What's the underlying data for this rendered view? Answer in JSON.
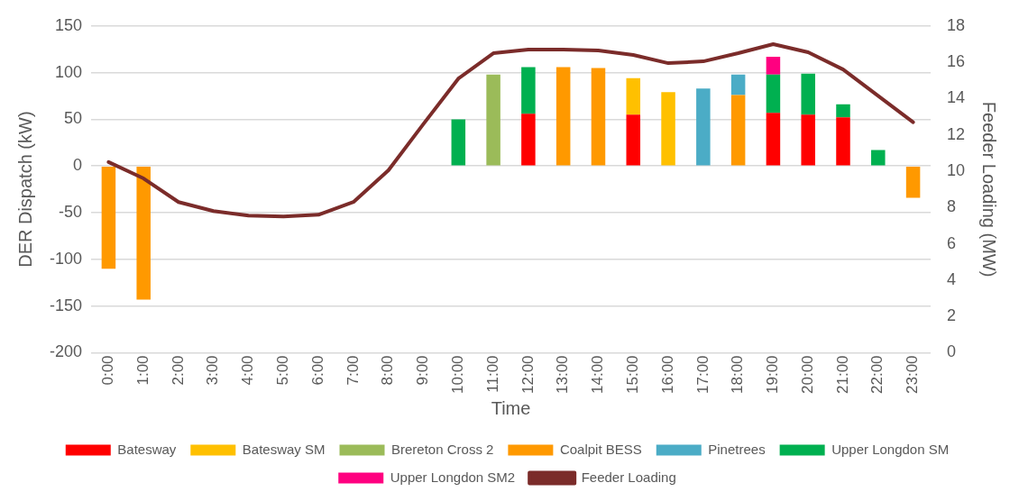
{
  "chart_data": {
    "type": "bar",
    "stacked": true,
    "xlabel": "Time",
    "ylabel": "DER Dispatch (kW)",
    "y2label": "Feeder Loading (MW)",
    "categories": [
      "0:00",
      "1:00",
      "2:00",
      "3:00",
      "4:00",
      "5:00",
      "6:00",
      "7:00",
      "8:00",
      "9:00",
      "10:00",
      "11:00",
      "12:00",
      "13:00",
      "14:00",
      "15:00",
      "16:00",
      "17:00",
      "18:00",
      "19:00",
      "20:00",
      "21:00",
      "22:00",
      "23:00"
    ],
    "ylim": [
      -200,
      150
    ],
    "yticks": [
      -200,
      -150,
      -100,
      -50,
      0,
      50,
      100,
      150
    ],
    "y2lim": [
      0,
      18
    ],
    "y2ticks": [
      0,
      2,
      4,
      6,
      8,
      10,
      12,
      14,
      16,
      18
    ],
    "grid": "y",
    "legend": "bottom",
    "series": [
      {
        "name": "Batesway",
        "color": "#ff0000",
        "values": [
          null,
          null,
          null,
          null,
          null,
          null,
          null,
          null,
          null,
          null,
          null,
          null,
          56,
          null,
          null,
          55,
          null,
          null,
          null,
          57,
          55,
          52,
          null,
          null
        ]
      },
      {
        "name": "Batesway SM",
        "color": "#ffc000",
        "values": [
          null,
          null,
          null,
          null,
          null,
          null,
          null,
          null,
          null,
          null,
          null,
          null,
          null,
          null,
          null,
          39,
          79,
          null,
          null,
          null,
          null,
          null,
          null,
          null
        ]
      },
      {
        "name": "Brereton Cross 2",
        "color": "#9bbb59",
        "values": [
          null,
          null,
          null,
          null,
          null,
          null,
          null,
          null,
          null,
          null,
          null,
          98,
          null,
          null,
          null,
          null,
          null,
          null,
          null,
          null,
          null,
          null,
          null,
          null
        ]
      },
      {
        "name": "Coalpit BESS",
        "color": "#ff9900",
        "values": [
          -110,
          -143,
          null,
          null,
          null,
          null,
          null,
          null,
          null,
          null,
          null,
          null,
          null,
          106,
          105,
          null,
          null,
          null,
          76,
          null,
          null,
          null,
          null,
          -34
        ]
      },
      {
        "name": "Pinetrees",
        "color": "#4bacc6",
        "values": [
          null,
          null,
          null,
          null,
          null,
          null,
          null,
          null,
          null,
          null,
          null,
          null,
          null,
          null,
          null,
          null,
          null,
          83,
          22,
          null,
          null,
          null,
          null,
          null
        ]
      },
      {
        "name": "Upper Longdon SM",
        "color": "#00b050",
        "values": [
          null,
          null,
          null,
          null,
          null,
          null,
          null,
          null,
          null,
          null,
          50,
          null,
          50,
          null,
          null,
          null,
          null,
          null,
          null,
          41,
          44,
          14,
          17,
          null
        ]
      },
      {
        "name": "Upper Longdon SM2",
        "color": "#ff0080",
        "values": [
          null,
          null,
          null,
          null,
          null,
          null,
          null,
          null,
          null,
          null,
          null,
          null,
          null,
          null,
          null,
          null,
          null,
          null,
          null,
          19,
          null,
          null,
          null,
          null
        ]
      },
      {
        "name": "Feeder Loading",
        "type": "line",
        "axis": "y2",
        "color": "#7b2c2a",
        "marker": "none",
        "values": [
          10.5,
          9.6,
          8.3,
          7.8,
          7.55,
          7.5,
          7.6,
          8.3,
          10.05,
          12.6,
          15.1,
          16.5,
          16.7,
          16.7,
          16.65,
          16.4,
          15.95,
          16.05,
          16.5,
          17.0,
          16.55,
          15.6,
          14.15,
          12.7
        ]
      }
    ]
  }
}
